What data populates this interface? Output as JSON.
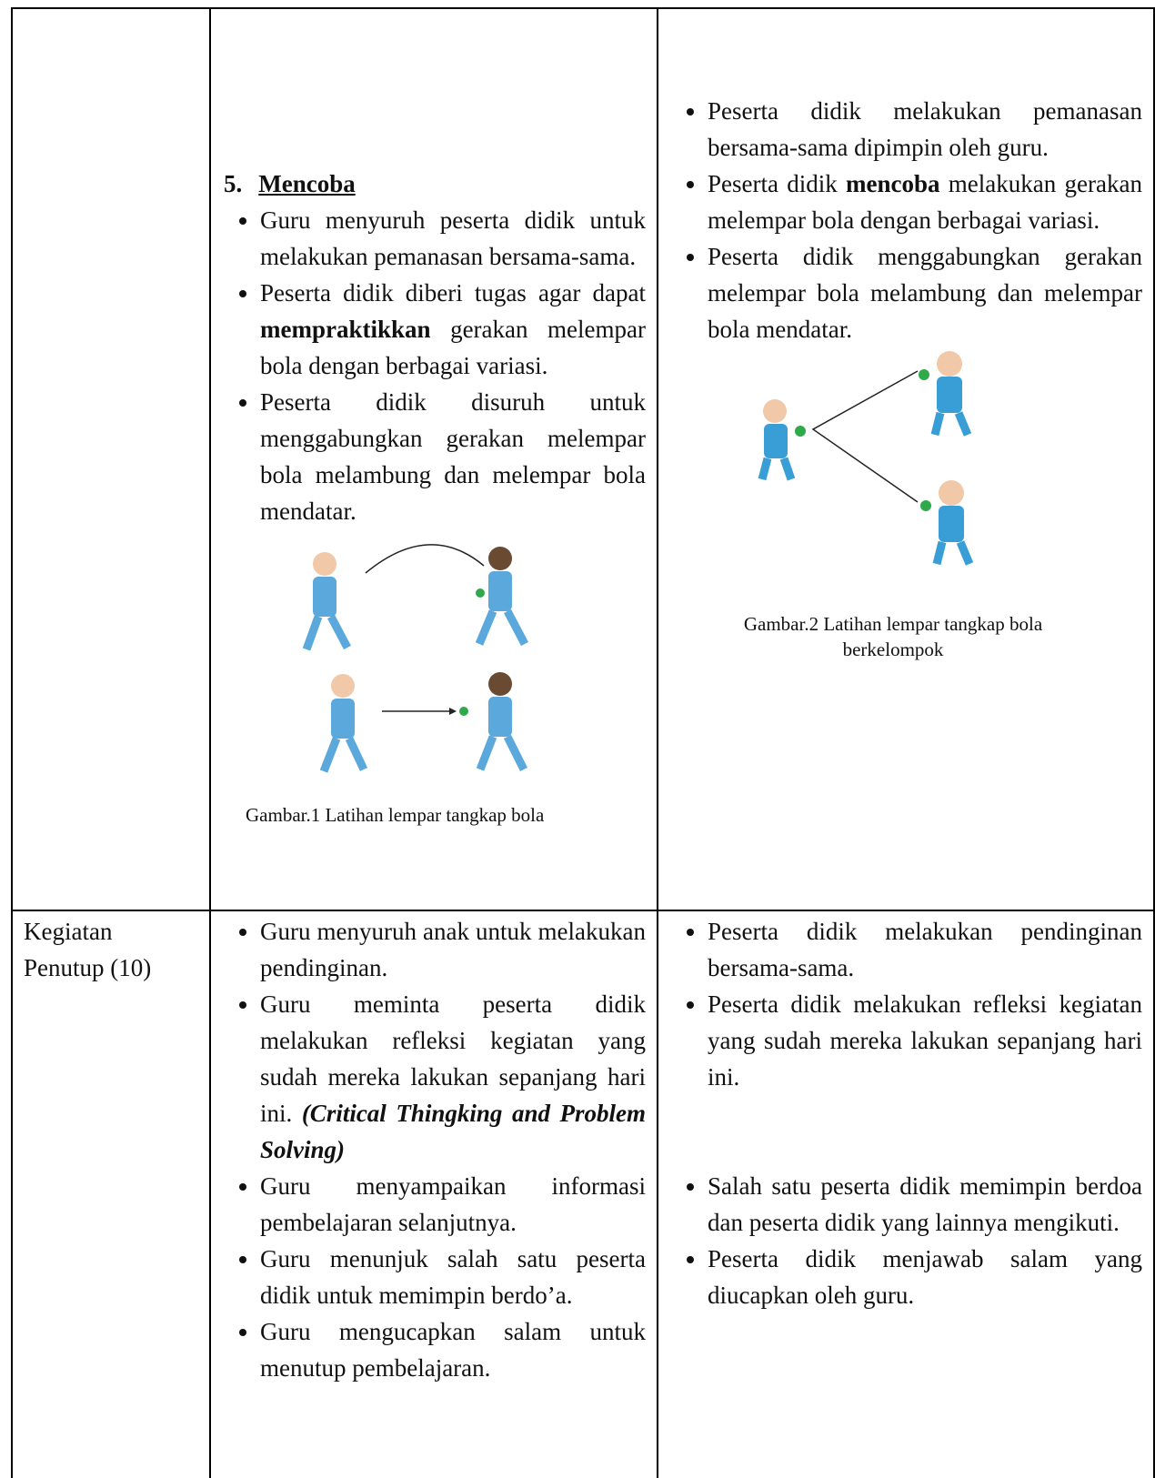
{
  "row1": {
    "heading_number": "5.",
    "heading": "Mencoba",
    "teacher_items": [
      "Guru menyuruh peserta didik untuk melakukan pemanasan bersama-sama.",
      [
        "Peserta didik diberi tugas agar dapat ",
        "mempraktikkan",
        " gerakan melempar bola dengan berbagai variasi."
      ],
      "Peserta didik disuruh untuk menggabungkan gerakan melempar bola melambung dan melempar bola mendatar."
    ],
    "figure1_caption": "Gambar.1 Latihan lempar tangkap bola",
    "student_items": [
      "Peserta didik melakukan pemanasan bersama-sama dipimpin oleh guru.",
      [
        "Peserta didik ",
        "mencoba",
        " melakukan gerakan melempar bola dengan berbagai variasi."
      ],
      "Peserta didik menggabungkan gerakan melempar bola melambung dan melempar bola mendatar."
    ],
    "figure2_caption": "Gambar.2 Latihan lempar tangkap bola berkelompok"
  },
  "row2": {
    "stage": "Kegiatan Penutup (10)",
    "teacher_items": [
      "Guru menyuruh anak untuk melakukan pendinginan.",
      [
        "Guru meminta peserta didik melakukan refleksi kegiatan yang sudah mereka lakukan sepanjang hari ini. ",
        "(Critical Thingking and Problem Solving)"
      ],
      "Guru menyampaikan informasi pembelajaran selanjutnya.",
      "Guru menunjuk salah satu peserta didik untuk memimpin berdo’a.",
      "Guru mengucapkan salam untuk menutup pembelajaran."
    ],
    "student_items": [
      "Peserta didik melakukan pendinginan bersama-sama.",
      "Peserta didik melakukan refleksi kegiatan yang sudah mereka lakukan sepanjang hari ini.",
      "Salah satu peserta didik memimpin berdoa dan peserta didik yang lainnya mengikuti.",
      "Peserta didik menjawab salam yang diucapkan oleh guru."
    ]
  }
}
